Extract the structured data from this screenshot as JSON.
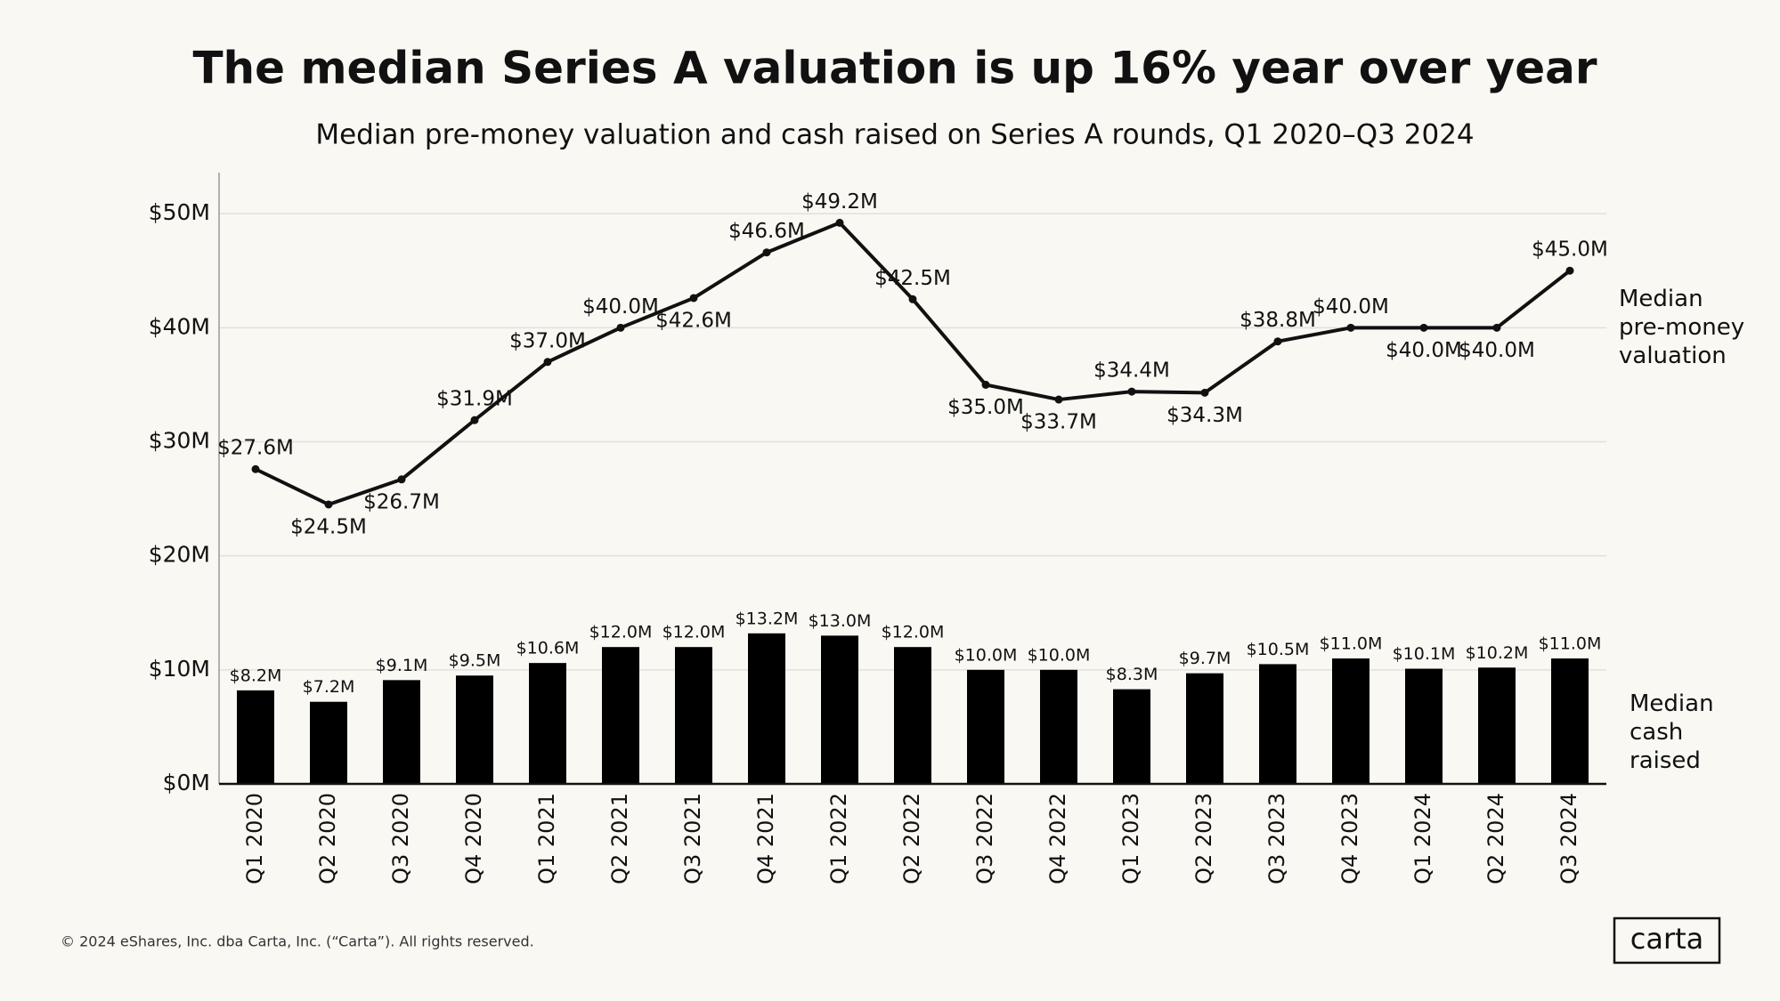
{
  "chart_data": {
    "type": "bar",
    "title": "The median Series A valuation is up 16% year over year",
    "subtitle": "Median pre-money valuation and cash raised on Series A rounds, Q1 2020–Q3 2024",
    "footer": "© 2024 eShares, Inc. dba Carta, Inc. (“Carta”). All rights reserved.",
    "logo": "carta",
    "categories": [
      "Q1 2020",
      "Q2 2020",
      "Q3 2020",
      "Q4 2020",
      "Q1 2021",
      "Q2 2021",
      "Q3 2021",
      "Q4 2021",
      "Q1 2022",
      "Q2 2022",
      "Q3 2022",
      "Q4 2022",
      "Q1 2023",
      "Q2 2023",
      "Q3 2023",
      "Q4 2023",
      "Q1 2024",
      "Q2 2024",
      "Q3 2024"
    ],
    "series": [
      {
        "name": "Median pre-money valuation",
        "type": "line",
        "color": "#111111",
        "values": [
          27.6,
          24.5,
          26.7,
          31.9,
          37.0,
          40.0,
          42.6,
          46.6,
          49.2,
          42.5,
          35.0,
          33.7,
          34.4,
          34.3,
          38.8,
          40.0,
          40.0,
          40.0,
          45.0
        ],
        "value_labels": [
          "$27.6M",
          "$24.5M",
          "$26.7M",
          "$31.9M",
          "$37.0M",
          "$40.0M",
          "$42.6M",
          "$46.6M",
          "$49.2M",
          "$42.5M",
          "$35.0M",
          "$33.7M",
          "$34.4M",
          "$34.3M",
          "$38.8M",
          "$40.0M",
          "$40.0M",
          "$40.0M",
          "$45.0M"
        ]
      },
      {
        "name": "Median cash raised",
        "type": "bar",
        "color": "#000000",
        "values": [
          8.2,
          7.2,
          9.1,
          9.5,
          10.6,
          12.0,
          12.0,
          13.2,
          13.0,
          12.0,
          10.0,
          10.0,
          8.3,
          9.7,
          10.5,
          11.0,
          10.1,
          10.2,
          11.0
        ],
        "value_labels": [
          "$8.2M",
          "$7.2M",
          "$9.1M",
          "$9.5M",
          "$10.6M",
          "$12.0M",
          "$12.0M",
          "$13.2M",
          "$13.0M",
          "$12.0M",
          "$10.0M",
          "$10.0M",
          "$8.3M",
          "$9.7M",
          "$10.5M",
          "$11.0M",
          "$10.1M",
          "$10.2M",
          "$11.0M"
        ]
      }
    ],
    "ylim": [
      0,
      53.6
    ],
    "yticks": [
      {
        "value": 0,
        "label": "$0M"
      },
      {
        "value": 10,
        "label": "$10M"
      },
      {
        "value": 20,
        "label": "$20M"
      },
      {
        "value": 30,
        "label": "$30M"
      },
      {
        "value": 40,
        "label": "$40M"
      },
      {
        "value": 50,
        "label": "$50M"
      }
    ],
    "grid": true
  }
}
